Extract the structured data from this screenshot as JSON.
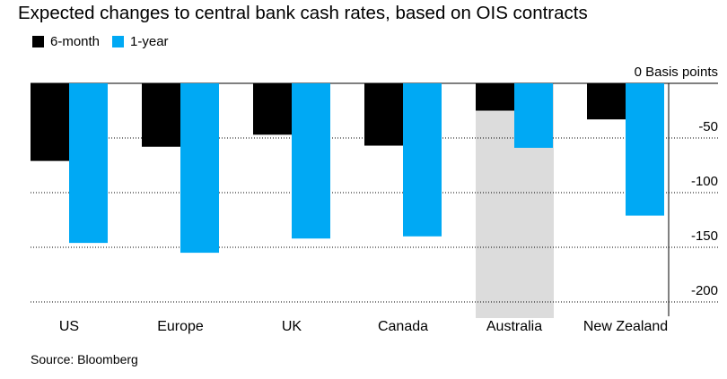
{
  "title": "Expected changes to central bank cash rates, based on OIS contracts",
  "source": "Source: Bloomberg",
  "legend": [
    {
      "label": "6-month",
      "color": "#000000"
    },
    {
      "label": "1-year",
      "color": "#00a9f4"
    }
  ],
  "colors": {
    "highlight_band": "#dcdcdc",
    "grid": "#000000"
  },
  "chart_data": {
    "type": "bar",
    "title": "Expected changes to central bank cash rates, based on OIS contracts",
    "categories": [
      "US",
      "Europe",
      "UK",
      "Canada",
      "Australia",
      "New Zealand"
    ],
    "series": [
      {
        "name": "6-month",
        "values": [
          -71,
          -58,
          -47,
          -57,
          -25,
          -33
        ]
      },
      {
        "name": "1-year",
        "values": [
          -146,
          -155,
          -142,
          -140,
          -59,
          -121
        ]
      }
    ],
    "highlighted_category": "Australia",
    "ylabel": "Basis points",
    "ylim": [
      -200,
      0
    ],
    "yticks": [
      {
        "value": 0,
        "label": "0 Basis points"
      },
      {
        "value": -50,
        "label": "-50"
      },
      {
        "value": -100,
        "label": "-100"
      },
      {
        "value": -150,
        "label": "-150"
      },
      {
        "value": -200,
        "label": "-200"
      }
    ],
    "grid": true,
    "legend_position": "top-left"
  }
}
